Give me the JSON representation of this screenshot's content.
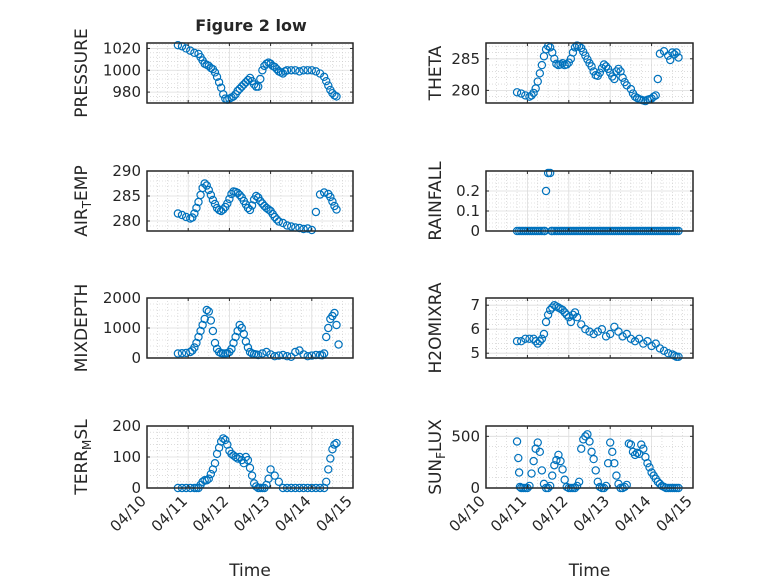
{
  "figure_title": "Figure 2 low",
  "time_label": "Time",
  "x_tick_labels": [
    "04/10",
    "04/11",
    "04/12",
    "04/13",
    "04/14",
    "04/15"
  ],
  "marker_color": "#0072BD",
  "chart_data": [
    {
      "type": "scatter",
      "title": "Figure 2 low",
      "ylabel": "PRESSURE",
      "ylabel_sub": "",
      "ylabel_post": "",
      "xlim": [
        10,
        15
      ],
      "ylim": [
        970,
        1025
      ],
      "yticks": [
        980,
        1000,
        1020
      ],
      "ytick_labels": [
        "980",
        "1000",
        "1020"
      ],
      "xlabel": "",
      "xticks_shown": false,
      "x": [
        10.75,
        10.85,
        10.95,
        11.05,
        11.15,
        11.25,
        11.3,
        11.35,
        11.4,
        11.45,
        11.5,
        11.55,
        11.6,
        11.65,
        11.7,
        11.75,
        11.8,
        11.85,
        11.9,
        11.95,
        12.0,
        12.05,
        12.1,
        12.15,
        12.2,
        12.25,
        12.3,
        12.35,
        12.4,
        12.45,
        12.5,
        12.55,
        12.6,
        12.65,
        12.7,
        12.75,
        12.8,
        12.85,
        12.9,
        12.95,
        13.0,
        13.05,
        13.1,
        13.15,
        13.2,
        13.25,
        13.3,
        13.35,
        13.4,
        13.5,
        13.6,
        13.7,
        13.8,
        13.9,
        14.0,
        14.1,
        14.2,
        14.3,
        14.35,
        14.4,
        14.45,
        14.5,
        14.55,
        14.6
      ],
      "y": [
        1023,
        1022,
        1020,
        1018,
        1016,
        1015,
        1012,
        1009,
        1006,
        1005,
        1004,
        1002,
        1001,
        998,
        994,
        989,
        984,
        978,
        974,
        973,
        974,
        975,
        976,
        978,
        981,
        983,
        985,
        987,
        989,
        991,
        993,
        990,
        987,
        985,
        985,
        992,
        1000,
        1004,
        1006,
        1007,
        1006,
        1004,
        1003,
        1001,
        999,
        998,
        997,
        999,
        1000,
        1000,
        1000,
        999,
        1000,
        1000,
        1000,
        999,
        997,
        994,
        990,
        986,
        982,
        979,
        977,
        976
      ]
    },
    {
      "type": "scatter",
      "ylabel": "THETA",
      "ylabel_sub": "",
      "ylabel_post": "",
      "xlim": [
        10,
        15
      ],
      "ylim": [
        278,
        287.5
      ],
      "yticks": [
        280,
        285
      ],
      "ytick_labels": [
        "280",
        "285"
      ],
      "xlabel": "",
      "xticks_shown": false,
      "x": [
        10.75,
        10.85,
        10.95,
        11.05,
        11.1,
        11.15,
        11.2,
        11.25,
        11.3,
        11.35,
        11.4,
        11.45,
        11.5,
        11.55,
        11.6,
        11.65,
        11.7,
        11.75,
        11.8,
        11.85,
        11.9,
        11.95,
        12.0,
        12.05,
        12.1,
        12.15,
        12.2,
        12.25,
        12.3,
        12.35,
        12.4,
        12.45,
        12.5,
        12.55,
        12.6,
        12.65,
        12.7,
        12.75,
        12.8,
        12.85,
        12.9,
        12.95,
        13.0,
        13.05,
        13.1,
        13.15,
        13.2,
        13.25,
        13.3,
        13.35,
        13.4,
        13.5,
        13.55,
        13.6,
        13.65,
        13.7,
        13.75,
        13.8,
        13.85,
        13.9,
        13.95,
        14.0,
        14.05,
        14.1,
        14.15,
        14.2,
        14.3,
        14.4,
        14.45,
        14.5,
        14.55,
        14.6,
        14.65
      ],
      "y": [
        279.7,
        279.5,
        279.2,
        279.0,
        279.2,
        279.6,
        280.3,
        281.4,
        282.7,
        284.0,
        285.4,
        286.5,
        287.0,
        286.8,
        286.0,
        285.0,
        284.2,
        284.0,
        284.1,
        284.3,
        284.0,
        284.1,
        284.4,
        285.0,
        286.0,
        286.8,
        287.1,
        287.0,
        286.7,
        286.1,
        285.5,
        284.9,
        284.3,
        283.8,
        283.0,
        282.4,
        282.3,
        282.8,
        283.5,
        284.1,
        283.8,
        283.4,
        282.8,
        282.2,
        281.8,
        283.0,
        283.4,
        283.0,
        282.0,
        281.3,
        280.8,
        280.2,
        279.5,
        279.0,
        278.8,
        278.6,
        278.5,
        278.4,
        278.3,
        278.5,
        278.6,
        278.7,
        279.0,
        279.2,
        281.8,
        285.8,
        286.2,
        285.5,
        284.8,
        286.0,
        285.7,
        286.0,
        285.2
      ]
    },
    {
      "type": "scatter",
      "ylabel": "AIR",
      "ylabel_sub": "T",
      "ylabel_post": "EMP",
      "xlim": [
        10,
        15
      ],
      "ylim": [
        278,
        290
      ],
      "yticks": [
        280,
        285,
        290
      ],
      "ytick_labels": [
        "280",
        "285",
        "290"
      ],
      "xlabel": "",
      "xticks_shown": false,
      "x": [
        10.75,
        10.85,
        10.95,
        11.05,
        11.1,
        11.15,
        11.2,
        11.25,
        11.3,
        11.35,
        11.4,
        11.45,
        11.5,
        11.55,
        11.6,
        11.65,
        11.7,
        11.75,
        11.8,
        11.85,
        11.9,
        11.95,
        12.0,
        12.05,
        12.1,
        12.15,
        12.2,
        12.25,
        12.3,
        12.35,
        12.4,
        12.45,
        12.5,
        12.55,
        12.6,
        12.65,
        12.7,
        12.75,
        12.8,
        12.85,
        12.9,
        12.95,
        13.0,
        13.05,
        13.1,
        13.15,
        13.2,
        13.3,
        13.4,
        13.5,
        13.6,
        13.7,
        13.8,
        13.9,
        14.0,
        14.1,
        14.2,
        14.3,
        14.4,
        14.45,
        14.5,
        14.55,
        14.6
      ],
      "y": [
        281.5,
        281.2,
        280.8,
        280.5,
        280.7,
        281.5,
        282.6,
        283.8,
        285.2,
        286.6,
        287.5,
        287.1,
        286.2,
        285.2,
        284.2,
        283.4,
        282.6,
        282.2,
        282.0,
        282.3,
        282.8,
        283.5,
        284.4,
        285.4,
        285.9,
        285.8,
        285.6,
        285.2,
        284.7,
        284.0,
        283.3,
        282.6,
        282.2,
        283.1,
        284.3,
        285.0,
        284.7,
        284.0,
        283.5,
        283.0,
        282.6,
        282.3,
        282.0,
        281.4,
        280.8,
        280.3,
        279.9,
        279.6,
        279.1,
        278.9,
        278.7,
        278.6,
        278.4,
        278.5,
        278.2,
        281.8,
        285.3,
        285.7,
        285.4,
        284.8,
        283.9,
        283.0,
        282.3
      ]
    },
    {
      "type": "scatter",
      "ylabel": "RAINFALL",
      "ylabel_sub": "",
      "ylabel_post": "",
      "xlim": [
        10,
        15
      ],
      "ylim": [
        0,
        0.3
      ],
      "yticks": [
        0,
        0.1,
        0.2
      ],
      "ytick_labels": [
        "0",
        "0.1",
        "0.2"
      ],
      "xlabel": "",
      "xticks_shown": false,
      "x": [
        10.75,
        10.8,
        10.85,
        10.9,
        10.95,
        11.0,
        11.05,
        11.1,
        11.15,
        11.2,
        11.25,
        11.3,
        11.35,
        11.4,
        11.42,
        11.45,
        11.5,
        11.55,
        11.58,
        11.6,
        11.65,
        11.7,
        11.75,
        11.8,
        11.85,
        11.9,
        11.95,
        12.0,
        12.05,
        12.1,
        12.15,
        12.2,
        12.25,
        12.3,
        12.35,
        12.4,
        12.45,
        12.5,
        12.55,
        12.6,
        12.65,
        12.7,
        12.75,
        12.8,
        12.85,
        12.9,
        12.95,
        13.0,
        13.05,
        13.1,
        13.15,
        13.2,
        13.25,
        13.3,
        13.35,
        13.4,
        13.45,
        13.5,
        13.55,
        13.6,
        13.65,
        13.7,
        13.75,
        13.8,
        13.85,
        13.9,
        13.95,
        14.0,
        14.05,
        14.1,
        14.15,
        14.2,
        14.25,
        14.3,
        14.35,
        14.4,
        14.45,
        14.5,
        14.55,
        14.6,
        14.65
      ],
      "y": [
        0,
        0,
        0,
        0,
        0,
        0,
        0,
        0,
        0,
        0,
        0,
        0,
        0,
        0,
        0,
        0.2,
        0.29,
        0.29,
        0,
        0,
        0,
        0,
        0,
        0,
        0,
        0,
        0,
        0,
        0,
        0,
        0,
        0,
        0,
        0,
        0,
        0,
        0,
        0,
        0,
        0,
        0,
        0,
        0,
        0,
        0,
        0,
        0,
        0,
        0,
        0,
        0,
        0,
        0,
        0,
        0,
        0,
        0,
        0,
        0,
        0,
        0,
        0,
        0,
        0,
        0,
        0,
        0,
        0,
        0,
        0,
        0,
        0,
        0,
        0,
        0,
        0,
        0,
        0,
        0,
        0,
        0
      ]
    },
    {
      "type": "scatter",
      "ylabel": "MIXDEPTH",
      "ylabel_sub": "",
      "ylabel_post": "",
      "xlim": [
        10,
        15
      ],
      "ylim": [
        0,
        2000
      ],
      "yticks": [
        0,
        1000,
        2000
      ],
      "ytick_labels": [
        "0",
        "1000",
        "2000"
      ],
      "xlabel": "",
      "xticks_shown": false,
      "x": [
        10.75,
        10.85,
        10.95,
        11.05,
        11.1,
        11.15,
        11.2,
        11.25,
        11.3,
        11.35,
        11.4,
        11.45,
        11.5,
        11.55,
        11.6,
        11.65,
        11.7,
        11.75,
        11.8,
        11.85,
        11.9,
        11.95,
        12.0,
        12.05,
        12.1,
        12.15,
        12.2,
        12.25,
        12.3,
        12.35,
        12.4,
        12.45,
        12.5,
        12.55,
        12.6,
        12.65,
        12.7,
        12.8,
        12.9,
        13.0,
        13.1,
        13.2,
        13.3,
        13.4,
        13.5,
        13.6,
        13.7,
        13.8,
        13.9,
        14.0,
        14.1,
        14.2,
        14.25,
        14.3,
        14.35,
        14.4,
        14.45,
        14.5,
        14.55,
        14.6,
        14.65
      ],
      "y": [
        150,
        160,
        170,
        200,
        250,
        350,
        500,
        700,
        900,
        1100,
        1300,
        1600,
        1550,
        1250,
        900,
        500,
        300,
        200,
        160,
        150,
        150,
        160,
        200,
        300,
        500,
        700,
        900,
        1100,
        1000,
        800,
        550,
        350,
        200,
        150,
        130,
        120,
        100,
        150,
        200,
        120,
        60,
        80,
        100,
        60,
        40,
        200,
        250,
        120,
        60,
        80,
        100,
        100,
        90,
        150,
        700,
        1000,
        1300,
        1400,
        1500,
        1100,
        450
      ]
    },
    {
      "type": "scatter",
      "ylabel": "H2OMIXRA",
      "ylabel_sub": "",
      "ylabel_post": "",
      "xlim": [
        10,
        15
      ],
      "ylim": [
        4.8,
        7.3
      ],
      "yticks": [
        5,
        6,
        7
      ],
      "ytick_labels": [
        "5",
        "6",
        "7"
      ],
      "xlabel": "",
      "xticks_shown": false,
      "x": [
        10.75,
        10.85,
        10.95,
        11.05,
        11.15,
        11.2,
        11.25,
        11.3,
        11.35,
        11.4,
        11.45,
        11.5,
        11.55,
        11.6,
        11.65,
        11.7,
        11.75,
        11.8,
        11.85,
        11.9,
        11.95,
        12.0,
        12.05,
        12.1,
        12.15,
        12.2,
        12.3,
        12.4,
        12.5,
        12.6,
        12.7,
        12.8,
        12.9,
        13.0,
        13.1,
        13.2,
        13.3,
        13.4,
        13.5,
        13.6,
        13.7,
        13.8,
        13.9,
        14.0,
        14.1,
        14.2,
        14.3,
        14.4,
        14.5,
        14.55,
        14.6,
        14.65
      ],
      "y": [
        5.5,
        5.5,
        5.6,
        5.6,
        5.6,
        5.5,
        5.4,
        5.5,
        5.6,
        5.8,
        6.3,
        6.6,
        6.8,
        6.9,
        7.0,
        6.95,
        6.9,
        6.85,
        6.8,
        6.7,
        6.6,
        6.5,
        6.3,
        6.6,
        6.7,
        6.5,
        6.2,
        6.0,
        5.9,
        5.8,
        5.9,
        6.0,
        5.7,
        5.8,
        6.1,
        5.9,
        5.7,
        5.8,
        5.6,
        5.5,
        5.6,
        5.4,
        5.5,
        5.3,
        5.4,
        5.2,
        5.1,
        5.0,
        4.95,
        4.9,
        4.85,
        4.85
      ]
    },
    {
      "type": "scatter",
      "ylabel": "TERR",
      "ylabel_sub": "M",
      "ylabel_post": "SL",
      "xlim": [
        10,
        15
      ],
      "ylim": [
        0,
        200
      ],
      "yticks": [
        0,
        100,
        200
      ],
      "ytick_labels": [
        "0",
        "100",
        "200"
      ],
      "xlabel": "Time",
      "xticks_shown": true,
      "x": [
        10.75,
        10.85,
        10.95,
        11.05,
        11.15,
        11.2,
        11.25,
        11.3,
        11.35,
        11.4,
        11.45,
        11.5,
        11.55,
        11.6,
        11.65,
        11.7,
        11.75,
        11.8,
        11.85,
        11.9,
        11.95,
        12.0,
        12.05,
        12.1,
        12.15,
        12.2,
        12.25,
        12.3,
        12.35,
        12.4,
        12.45,
        12.5,
        12.55,
        12.6,
        12.65,
        12.7,
        12.75,
        12.8,
        12.85,
        12.9,
        12.95,
        13.0,
        13.1,
        13.2,
        13.3,
        13.4,
        13.5,
        13.6,
        13.7,
        13.8,
        13.9,
        14.0,
        14.1,
        14.2,
        14.3,
        14.35,
        14.4,
        14.45,
        14.5,
        14.55,
        14.6
      ],
      "y": [
        0,
        0,
        0,
        0,
        0,
        0,
        0,
        10,
        20,
        25,
        25,
        30,
        45,
        60,
        80,
        110,
        130,
        150,
        160,
        155,
        140,
        120,
        110,
        105,
        100,
        95,
        100,
        90,
        80,
        100,
        90,
        65,
        40,
        15,
        5,
        0,
        0,
        0,
        0,
        10,
        30,
        60,
        40,
        20,
        0,
        0,
        0,
        0,
        0,
        0,
        0,
        0,
        0,
        0,
        0,
        20,
        60,
        95,
        125,
        140,
        145
      ]
    },
    {
      "type": "scatter",
      "ylabel": "SUN",
      "ylabel_sub": "F",
      "ylabel_post": "LUX",
      "xlim": [
        10,
        15
      ],
      "ylim": [
        0,
        600
      ],
      "yticks": [
        0,
        500
      ],
      "ytick_labels": [
        "0",
        "500"
      ],
      "xlabel": "Time",
      "xticks_shown": true,
      "x": [
        10.75,
        10.78,
        10.8,
        10.82,
        10.85,
        10.9,
        10.95,
        11.0,
        11.05,
        11.1,
        11.15,
        11.2,
        11.25,
        11.3,
        11.35,
        11.4,
        11.45,
        11.5,
        11.55,
        11.6,
        11.65,
        11.7,
        11.75,
        11.8,
        11.85,
        11.9,
        11.95,
        12.0,
        12.05,
        12.1,
        12.15,
        12.2,
        12.25,
        12.3,
        12.35,
        12.4,
        12.45,
        12.5,
        12.55,
        12.6,
        12.65,
        12.7,
        12.75,
        12.8,
        12.85,
        12.9,
        12.95,
        13.0,
        13.05,
        13.1,
        13.15,
        13.2,
        13.25,
        13.3,
        13.35,
        13.4,
        13.45,
        13.5,
        13.55,
        13.6,
        13.65,
        13.7,
        13.75,
        13.8,
        13.85,
        13.9,
        13.95,
        14.0,
        14.05,
        14.1,
        14.15,
        14.2,
        14.25,
        14.3,
        14.35,
        14.4,
        14.45,
        14.5,
        14.55,
        14.6,
        14.65
      ],
      "y": [
        450,
        290,
        150,
        10,
        0,
        0,
        0,
        0,
        20,
        140,
        260,
        380,
        440,
        350,
        170,
        40,
        0,
        0,
        20,
        120,
        220,
        270,
        320,
        260,
        180,
        80,
        10,
        0,
        0,
        0,
        0,
        20,
        60,
        380,
        470,
        500,
        520,
        450,
        350,
        280,
        170,
        60,
        10,
        0,
        0,
        20,
        240,
        440,
        350,
        240,
        120,
        40,
        0,
        0,
        10,
        30,
        430,
        420,
        350,
        320,
        340,
        330,
        420,
        380,
        300,
        240,
        200,
        150,
        120,
        90,
        60,
        40,
        20,
        10,
        0,
        0,
        0,
        0,
        0,
        0,
        0
      ]
    }
  ]
}
